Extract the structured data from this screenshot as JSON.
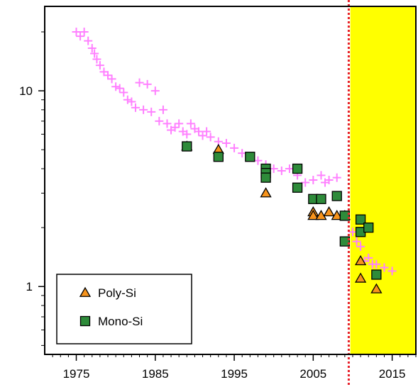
{
  "chart_data": {
    "type": "scatter",
    "title": "",
    "xlabel": "",
    "ylabel": "",
    "xlim": [
      1971,
      2018
    ],
    "ylim": [
      0.45,
      27
    ],
    "yscale": "log",
    "grid": false,
    "x_ticks": [
      1975,
      1985,
      1995,
      2005,
      2015
    ],
    "y_ticks": [
      1,
      10
    ],
    "x_tick_labels": [
      "1975",
      "1985",
      "1995",
      "2005",
      "2015"
    ],
    "y_tick_labels": [
      "1",
      "10"
    ],
    "legend": {
      "position": "bottom-left",
      "entries": [
        {
          "label": "Poly-Si",
          "marker": "triangle",
          "color": "#f7941d"
        },
        {
          "label": "Mono-Si",
          "marker": "square",
          "color": "#2e8b3a"
        }
      ]
    },
    "reference_line": {
      "x": 2009.5,
      "style": "dotted",
      "color": "#e8202a"
    },
    "highlight_region": {
      "x_from": 2009.7,
      "x_to": 2018,
      "color": "#ffff00"
    },
    "series": [
      {
        "marker": "plus",
        "color": "#ff80ff",
        "points": [
          [
            1975.0,
            20.0
          ],
          [
            1975.5,
            19.0
          ],
          [
            1976.0,
            20.0
          ],
          [
            1976.5,
            18.0
          ],
          [
            1977.0,
            16.5
          ],
          [
            1977.3,
            15.5
          ],
          [
            1977.6,
            14.5
          ],
          [
            1978.0,
            13.5
          ],
          [
            1978.5,
            12.5
          ],
          [
            1979.0,
            12.0
          ],
          [
            1979.5,
            11.5
          ],
          [
            1980.0,
            10.5
          ],
          [
            1980.5,
            10.3
          ],
          [
            1981.0,
            9.8
          ],
          [
            1981.5,
            9.0
          ],
          [
            1982.0,
            8.8
          ],
          [
            1982.5,
            8.2
          ],
          [
            1983.0,
            11.0
          ],
          [
            1983.5,
            8.0
          ],
          [
            1984.0,
            10.8
          ],
          [
            1984.5,
            7.8
          ],
          [
            1985.0,
            10.0
          ],
          [
            1985.5,
            7.0
          ],
          [
            1986.0,
            8.0
          ],
          [
            1986.5,
            6.8
          ],
          [
            1987.0,
            6.3
          ],
          [
            1987.5,
            6.5
          ],
          [
            1988.0,
            6.8
          ],
          [
            1988.5,
            6.2
          ],
          [
            1989.0,
            6.0
          ],
          [
            1989.5,
            6.8
          ],
          [
            1990.0,
            6.4
          ],
          [
            1990.5,
            6.2
          ],
          [
            1991.0,
            5.9
          ],
          [
            1991.5,
            6.2
          ],
          [
            1992.0,
            5.8
          ],
          [
            1993.0,
            5.5
          ],
          [
            1994.0,
            5.4
          ],
          [
            1995.0,
            5.1
          ],
          [
            1996.0,
            4.8
          ],
          [
            1997.0,
            4.6
          ],
          [
            1998.0,
            4.4
          ],
          [
            1999.0,
            4.2
          ],
          [
            2000.0,
            4.0
          ],
          [
            2001.0,
            3.9
          ],
          [
            2002.0,
            4.0
          ],
          [
            2003.0,
            3.7
          ],
          [
            2004.0,
            3.4
          ],
          [
            2005.0,
            3.5
          ],
          [
            2006.0,
            3.7
          ],
          [
            2006.5,
            3.4
          ],
          [
            2007.0,
            3.5
          ],
          [
            2008.0,
            3.6
          ],
          [
            2009.0,
            2.3
          ],
          [
            2010.0,
            1.9
          ],
          [
            2010.5,
            1.7
          ],
          [
            2011.0,
            1.6
          ],
          [
            2011.5,
            1.35
          ],
          [
            2012.0,
            1.4
          ],
          [
            2012.5,
            1.3
          ],
          [
            2013.0,
            1.3
          ],
          [
            2014.0,
            1.25
          ],
          [
            2015.0,
            1.2
          ]
        ]
      },
      {
        "name": "Poly-Si",
        "marker": "triangle",
        "color": "#f7941d",
        "points": [
          [
            1989,
            5.2
          ],
          [
            1993,
            5.0
          ],
          [
            1999,
            3.0
          ],
          [
            2005,
            2.4
          ],
          [
            2005,
            2.3
          ],
          [
            2006,
            2.3
          ],
          [
            2007,
            2.4
          ],
          [
            2008,
            2.3
          ],
          [
            2009,
            2.3
          ],
          [
            2011,
            1.35
          ],
          [
            2011,
            1.1
          ],
          [
            2013,
            0.97
          ]
        ]
      },
      {
        "name": "Mono-Si",
        "marker": "square",
        "color": "#2e8b3a",
        "points": [
          [
            1989,
            5.2
          ],
          [
            1993,
            4.6
          ],
          [
            1997,
            4.6
          ],
          [
            1999,
            4.0
          ],
          [
            1999,
            3.8
          ],
          [
            1999,
            3.6
          ],
          [
            2003,
            4.0
          ],
          [
            2003,
            3.2
          ],
          [
            2005,
            2.8
          ],
          [
            2006,
            2.8
          ],
          [
            2008,
            2.9
          ],
          [
            2009,
            2.3
          ],
          [
            2009,
            1.7
          ],
          [
            2011,
            2.2
          ],
          [
            2011,
            1.9
          ],
          [
            2012,
            2.0
          ],
          [
            2013,
            1.15
          ]
        ]
      }
    ]
  }
}
